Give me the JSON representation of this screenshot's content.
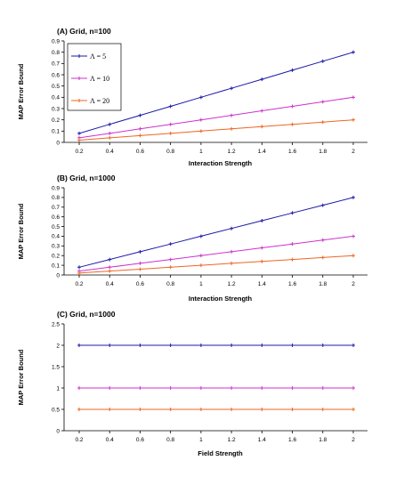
{
  "chart_data": [
    {
      "type": "line",
      "title": "(A) Grid, n=100",
      "xlabel": "Interaction Strength",
      "ylabel": "MAP Error Bound",
      "x": [
        0.2,
        0.4,
        0.6,
        0.8,
        1,
        1.2,
        1.4,
        1.6,
        1.8,
        2
      ],
      "x_tick_labels": [
        "0.2",
        "0.4",
        "0.6",
        "0.8",
        "1",
        "1.2",
        "1.4",
        "1.6",
        "1.8",
        "2"
      ],
      "ylim": [
        0,
        0.9
      ],
      "y_tick_labels": [
        "0",
        "0.1",
        "0.2",
        "0.3",
        "0.4",
        "0.5",
        "0.6",
        "0.7",
        "0.8",
        "0.9"
      ],
      "legend_position": "top-left",
      "series": [
        {
          "name": "Λ = 5",
          "color": "#1a1aa8",
          "values": [
            0.08,
            0.16,
            0.24,
            0.32,
            0.4,
            0.48,
            0.56,
            0.64,
            0.72,
            0.8
          ]
        },
        {
          "name": "Λ = 10",
          "color": "#cc33cc",
          "values": [
            0.04,
            0.08,
            0.12,
            0.16,
            0.2,
            0.24,
            0.28,
            0.32,
            0.36,
            0.4
          ]
        },
        {
          "name": "Λ = 20",
          "color": "#ee6622",
          "values": [
            0.02,
            0.04,
            0.06,
            0.08,
            0.1,
            0.12,
            0.14,
            0.16,
            0.18,
            0.2
          ]
        }
      ]
    },
    {
      "type": "line",
      "title": "(B) Grid, n=1000",
      "xlabel": "Interaction Strength",
      "ylabel": "MAP Error Bound",
      "x": [
        0.2,
        0.4,
        0.6,
        0.8,
        1,
        1.2,
        1.4,
        1.6,
        1.8,
        2
      ],
      "x_tick_labels": [
        "0.2",
        "0.4",
        "0.6",
        "0.8",
        "1",
        "1.2",
        "1.4",
        "1.6",
        "1.8",
        "2"
      ],
      "ylim": [
        0,
        0.9
      ],
      "y_tick_labels": [
        "0",
        "0.1",
        "0.2",
        "0.3",
        "0.4",
        "0.5",
        "0.6",
        "0.7",
        "0.8",
        "0.9"
      ],
      "series": [
        {
          "color": "#1a1aa8",
          "values": [
            0.08,
            0.16,
            0.24,
            0.32,
            0.4,
            0.48,
            0.56,
            0.64,
            0.72,
            0.8
          ]
        },
        {
          "color": "#cc33cc",
          "values": [
            0.04,
            0.08,
            0.12,
            0.16,
            0.2,
            0.24,
            0.28,
            0.32,
            0.36,
            0.4
          ]
        },
        {
          "color": "#ee6622",
          "values": [
            0.02,
            0.04,
            0.06,
            0.08,
            0.1,
            0.12,
            0.14,
            0.16,
            0.18,
            0.2
          ]
        }
      ]
    },
    {
      "type": "line",
      "title": "(C) Grid, n=1000",
      "xlabel": "Field Strength",
      "ylabel": "MAP Error Bound",
      "x": [
        0.2,
        0.4,
        0.6,
        0.8,
        1,
        1.2,
        1.4,
        1.6,
        1.8,
        2
      ],
      "x_tick_labels": [
        "0.2",
        "0.4",
        "0.6",
        "0.8",
        "1",
        "1.2",
        "1.4",
        "1.6",
        "1.8",
        "2"
      ],
      "ylim": [
        0,
        2.5
      ],
      "y_tick_labels": [
        "0",
        "0.5",
        "1",
        "1.5",
        "2",
        "2.5"
      ],
      "series": [
        {
          "color": "#1a1aa8",
          "values": [
            2,
            2,
            2,
            2,
            2,
            2,
            2,
            2,
            2,
            2
          ]
        },
        {
          "color": "#cc33cc",
          "values": [
            1,
            1,
            1,
            1,
            1,
            1,
            1,
            1,
            1,
            1
          ]
        },
        {
          "color": "#ee6622",
          "values": [
            0.5,
            0.5,
            0.5,
            0.5,
            0.5,
            0.5,
            0.5,
            0.5,
            0.5,
            0.5
          ]
        }
      ]
    }
  ]
}
